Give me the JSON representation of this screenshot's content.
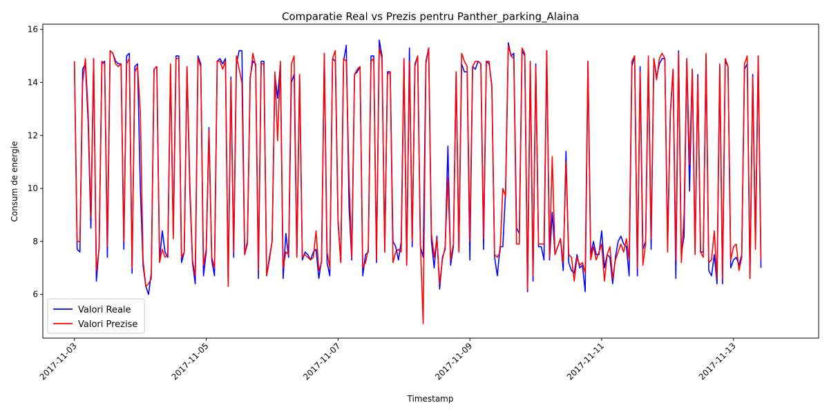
{
  "chart_data": {
    "type": "line",
    "title": "Comparatie Real vs Prezis pentru Panther_parking_Alaina",
    "xlabel": "Timestamp",
    "ylabel": "Consum de energie",
    "xlim": [
      "2017-11-02 12:30",
      "2017-11-14 07:00"
    ],
    "ylim": [
      4.35,
      16.2
    ],
    "x_ticks": [
      "2017-11-03",
      "2017-11-05",
      "2017-11-07",
      "2017-11-09",
      "2017-11-11",
      "2017-11-13"
    ],
    "x_tick_rotation": 45,
    "y_ticks": [
      6,
      8,
      10,
      12,
      14,
      16
    ],
    "grid": false,
    "legend_position": "lower-left",
    "sampling": "hourly",
    "start": "2017-11-03 00:00",
    "series": [
      {
        "name": "Valori Reale",
        "color": "#0000ff",
        "values": [
          14.8,
          7.7,
          7.6,
          14.5,
          14.7,
          12.5,
          8.5,
          14.9,
          6.5,
          7.8,
          14.7,
          14.8,
          7.4,
          15.2,
          15.1,
          14.8,
          14.7,
          14.7,
          7.7,
          15.0,
          15.1,
          6.8,
          14.6,
          14.7,
          10.0,
          7.1,
          6.3,
          6.0,
          6.8,
          14.5,
          14.6,
          7.3,
          8.4,
          7.6,
          7.4,
          14.6,
          8.2,
          15.0,
          15.0,
          7.2,
          7.6,
          14.6,
          10.0,
          7.2,
          6.4,
          15.0,
          14.7,
          6.7,
          7.6,
          12.3,
          7.3,
          6.7,
          14.8,
          14.9,
          14.7,
          14.9,
          6.4,
          14.2,
          7.4,
          14.7,
          15.2,
          15.2,
          7.5,
          8.0,
          14.2,
          14.8,
          14.7,
          6.6,
          14.8,
          14.8,
          6.7,
          7.4,
          8.0,
          14.3,
          13.4,
          14.7,
          6.6,
          8.3,
          7.4,
          14.0,
          14.3,
          7.4,
          14.3,
          7.3,
          7.6,
          7.5,
          7.3,
          7.6,
          7.7,
          6.6,
          7.3,
          15.1,
          7.2,
          6.7,
          14.9,
          14.8,
          8.7,
          7.2,
          14.8,
          15.4,
          9.3,
          7.3,
          14.3,
          14.4,
          14.6,
          6.7,
          7.5,
          7.6,
          15.0,
          15.0,
          7.2,
          15.6,
          15.0,
          7.6,
          14.4,
          14.4,
          8.0,
          7.8,
          7.3,
          8.0,
          14.9,
          7.1,
          15.3,
          7.8,
          14.7,
          15.0,
          7.8,
          7.4,
          14.8,
          15.3,
          8.0,
          7.0,
          8.2,
          6.2,
          7.4,
          7.7,
          11.6,
          7.1,
          7.8,
          14.4,
          7.6,
          14.7,
          14.4,
          14.4,
          7.3,
          14.6,
          14.5,
          14.8,
          14.7,
          7.7,
          14.8,
          14.7,
          13.9,
          7.4,
          6.7,
          7.8,
          7.8,
          9.9,
          15.5,
          15.0,
          15.1,
          8.5,
          8.3,
          15.2,
          15.0,
          6.1,
          14.7,
          6.5,
          14.7,
          7.8,
          7.8,
          7.3,
          15.2,
          7.3,
          9.1,
          7.5,
          7.8,
          8.1,
          6.9,
          11.4,
          7.2,
          6.9,
          6.8,
          7.5,
          7.0,
          7.1,
          6.1,
          14.8,
          7.5,
          8.0,
          7.5,
          7.5,
          8.4,
          7.0,
          7.5,
          7.4,
          6.4,
          7.4,
          8.0,
          8.2,
          7.9,
          7.8,
          6.7,
          14.6,
          15.0,
          6.7,
          14.6,
          7.7,
          8.0,
          14.8,
          7.7,
          14.9,
          14.2,
          14.7,
          14.9,
          14.9,
          7.9,
          12.8,
          14.5,
          6.6,
          15.2,
          7.5,
          8.2,
          14.9,
          9.9,
          14.5,
          7.6,
          14.3,
          7.6,
          7.6,
          15.0,
          6.9,
          6.7,
          7.5,
          6.4,
          14.6,
          6.4,
          14.8,
          14.6,
          7.0,
          7.3,
          7.4,
          7.1,
          7.5,
          14.5,
          14.7,
          6.6,
          14.3,
          8.0,
          15.0,
          7.0
        ]
      },
      {
        "name": "Valori Prezise",
        "color": "#ff0000",
        "values": [
          14.8,
          8.0,
          8.0,
          14.0,
          14.9,
          12.9,
          8.9,
          14.9,
          6.9,
          7.7,
          14.8,
          14.7,
          7.8,
          15.2,
          15.1,
          14.7,
          14.6,
          14.7,
          8.0,
          14.7,
          14.9,
          7.0,
          14.4,
          14.6,
          12.9,
          7.3,
          6.3,
          6.4,
          6.6,
          14.5,
          14.6,
          7.2,
          7.7,
          7.4,
          7.5,
          14.7,
          8.1,
          14.9,
          14.9,
          7.4,
          7.6,
          14.6,
          10.3,
          7.3,
          6.7,
          14.9,
          14.6,
          7.1,
          7.7,
          12.2,
          7.4,
          7.0,
          14.8,
          14.8,
          14.5,
          14.8,
          6.3,
          14.1,
          7.6,
          15.0,
          14.5,
          14.0,
          7.5,
          7.9,
          14.1,
          15.1,
          14.6,
          6.9,
          14.7,
          14.7,
          6.7,
          7.3,
          8.0,
          14.4,
          11.8,
          14.8,
          7.0,
          7.6,
          7.5,
          14.7,
          15.0,
          7.4,
          14.3,
          7.4,
          7.5,
          7.4,
          7.3,
          7.4,
          8.4,
          6.9,
          7.2,
          15.1,
          7.6,
          7.0,
          14.9,
          15.2,
          8.8,
          7.2,
          14.9,
          14.8,
          10.4,
          7.4,
          14.3,
          14.5,
          14.6,
          7.0,
          7.2,
          7.7,
          14.8,
          14.9,
          7.3,
          15.3,
          14.9,
          7.6,
          14.3,
          14.4,
          7.2,
          7.6,
          7.7,
          7.6,
          14.9,
          7.1,
          14.8,
          8.0,
          14.6,
          15.0,
          7.9,
          4.9,
          14.7,
          15.3,
          8.3,
          7.4,
          8.1,
          6.4,
          7.3,
          7.8,
          10.4,
          7.3,
          7.9,
          14.4,
          7.6,
          15.1,
          14.8,
          14.6,
          8.0,
          14.6,
          14.8,
          14.8,
          14.7,
          8.1,
          14.8,
          14.8,
          13.8,
          7.5,
          7.4,
          7.6,
          10.0,
          9.7,
          15.4,
          15.0,
          14.9,
          7.9,
          7.9,
          15.3,
          15.1,
          6.2,
          14.8,
          6.7,
          14.6,
          7.9,
          7.9,
          7.9,
          15.2,
          7.4,
          11.2,
          7.5,
          7.8,
          8.1,
          7.2,
          11.0,
          7.5,
          7.4,
          6.5,
          7.4,
          7.1,
          7.2,
          6.8,
          14.8,
          7.3,
          7.8,
          7.3,
          7.6,
          7.9,
          6.5,
          7.5,
          7.8,
          6.6,
          7.3,
          7.6,
          7.9,
          7.6,
          8.1,
          7.3,
          14.8,
          15.0,
          7.0,
          14.4,
          7.1,
          7.9,
          15.0,
          8.1,
          14.9,
          14.1,
          14.9,
          15.1,
          14.9,
          7.6,
          12.9,
          14.5,
          7.3,
          15.1,
          7.2,
          9.0,
          14.9,
          10.9,
          14.5,
          7.5,
          14.2,
          7.6,
          7.4,
          15.1,
          7.2,
          7.3,
          8.4,
          6.6,
          14.7,
          6.6,
          14.9,
          14.6,
          7.3,
          7.8,
          7.9,
          6.9,
          7.4,
          14.7,
          15.0,
          6.6,
          14.2,
          7.7,
          15.0,
          7.3
        ]
      }
    ]
  }
}
